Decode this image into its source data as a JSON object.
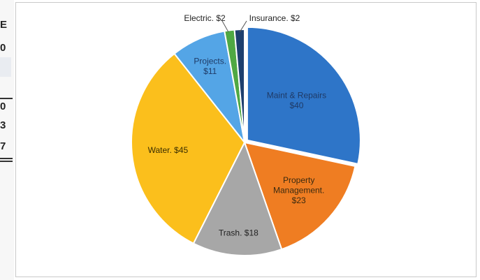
{
  "left_strip": {
    "items": [
      "E",
      "0",
      "0",
      "3",
      "7"
    ]
  },
  "chart_data": {
    "type": "pie",
    "title": "",
    "start_angle_deg": 0,
    "direction": "clockwise",
    "slices": [
      {
        "name": "Maint & Repairs",
        "value": 40,
        "label_lines": [
          "Maint & Repairs",
          "$40"
        ],
        "color": "#2e75c8",
        "label_color": "#1f3a66"
      },
      {
        "name": "Property Management",
        "value": 23,
        "label_lines": [
          "Property",
          "Management.",
          "$23"
        ],
        "color": "#ef7d22",
        "label_color": "#3a2a10"
      },
      {
        "name": "Trash",
        "value": 18,
        "label_lines": [
          "Trash. $18"
        ],
        "color": "#a7a7a7",
        "label_color": "#222222"
      },
      {
        "name": "Water",
        "value": 45,
        "label_lines": [
          "Water. $45"
        ],
        "color": "#fbbf1c",
        "label_color": "#3a2e00"
      },
      {
        "name": "Projects",
        "value": 11,
        "label_lines": [
          "Projects.",
          "$11"
        ],
        "color": "#54a5e6",
        "label_color": "#1f3a66"
      },
      {
        "name": "Electric",
        "value": 2,
        "label_lines": [
          "Electric. $2"
        ],
        "color": "#4fa843",
        "label_color": "#222222",
        "outside": true
      },
      {
        "name": "Insurance",
        "value": 2,
        "label_lines": [
          "Insurance. $2"
        ],
        "color": "#1e3f6e",
        "label_color": "#222222",
        "outside": true
      }
    ]
  }
}
